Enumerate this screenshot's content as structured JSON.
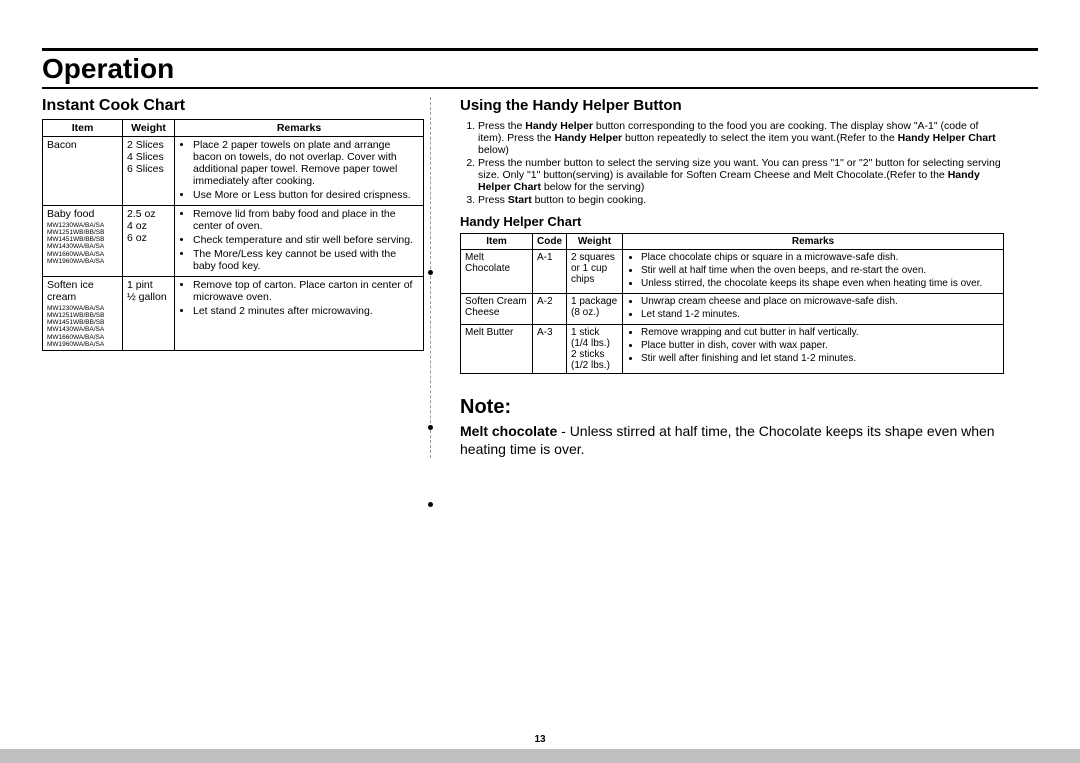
{
  "page_title": "Operation",
  "page_number": "13",
  "left": {
    "heading": "Instant Cook Chart",
    "headers": {
      "item": "Item",
      "weight": "Weight",
      "remarks": "Remarks"
    },
    "rows": [
      {
        "item": "Bacon",
        "models": "",
        "weight": "2 Slices\n4 Slices\n6 Slices",
        "remarks": [
          "Place 2 paper towels on plate and arrange bacon on towels, do not overlap. Cover with additional paper towel. Remove paper towel immediately after cooking.",
          "Use More or Less button for desired crispness."
        ]
      },
      {
        "item": "Baby food",
        "models": "MW1230WA/BA/SA\nMW1251WB/BB/SB\nMW1451WB/BB/SB\nMW1430WA/BA/SA\nMW1660WA/BA/SA\nMW1960WA/BA/SA",
        "weight": "2.5 oz\n4 oz\n6 oz",
        "remarks": [
          "Remove lid from baby food and place in the center of oven.",
          "Check temperature and stir well before serving.",
          "The More/Less key cannot be used with the baby food key."
        ]
      },
      {
        "item": "Soften ice cream",
        "models": "MW1230WA/BA/SA\nMW1251WB/BB/SB\nMW1451WB/BB/SB\nMW1430WA/BA/SA\nMW1660WA/BA/SA\nMW1960WA/BA/SA",
        "weight": "1 pint\n½ gallon",
        "remarks": [
          "Remove top of carton. Place carton in center of microwave oven.",
          "Let stand 2 minutes after microwaving."
        ]
      }
    ]
  },
  "right": {
    "heading": "Using the Handy Helper Button",
    "step1": "Press the <b>Handy Helper</b> button corresponding to the food you are cooking. The display show \"A-1\" (code of item).   Press the <b>Handy Helper</b> button repeatedly to select the item you want.(Refer to the <b>Handy Helper Chart</b> below)",
    "step2": "Press the number button to select the serving size you want. You can press \"1\" or \"2\" button for selecting serving size. Only \"1\" button(serving) is available for Soften Cream Cheese and Melt Chocolate.(Refer to the <b>Handy Helper Chart</b> below for the serving)",
    "step3": "Press <b>Start</b> button to begin cooking.",
    "chart_heading": "Handy Helper Chart",
    "headers": {
      "item": "Item",
      "code": "Code",
      "weight": "Weight",
      "remarks": "Remarks"
    },
    "rows": [
      {
        "item": "Melt Chocolate",
        "code": "A-1",
        "weight": "2 squares or 1 cup chips",
        "remarks": [
          "Place chocolate chips or square in a microwave-safe dish.",
          "Stir well at half time when the oven beeps, and re-start the oven.",
          "Unless stirred, the chocolate keeps its shape even when heating time is over."
        ]
      },
      {
        "item": "Soften Cream Cheese",
        "code": "A-2",
        "weight": "1 package (8 oz.)",
        "remarks": [
          "Unwrap cream cheese and place on microwave-safe dish.",
          "Let stand 1-2 minutes."
        ]
      },
      {
        "item": "Melt Butter",
        "code": "A-3",
        "weight": "1 stick (1/4 lbs.) 2 sticks (1/2 lbs.)",
        "remarks": [
          "Remove wrapping and cut butter in half vertically.",
          "Place butter in dish, cover with wax paper.",
          "Stir well after finishing and let stand 1-2 minutes."
        ]
      }
    ],
    "note_title": "Note:",
    "note_text": "<b>Melt chocolate</b> - Unless stirred at half time, the Chocolate keeps its shape even when heating time is over."
  }
}
